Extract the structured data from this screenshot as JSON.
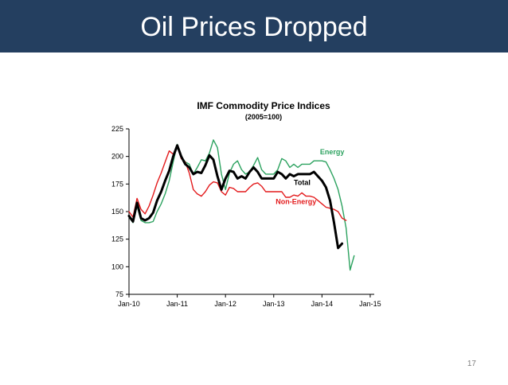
{
  "slide": {
    "title": "Oil Prices Dropped",
    "page_number": "17"
  },
  "chart_data": {
    "type": "line",
    "title": "IMF Commodity Price Indices",
    "subtitle": "(2005=100)",
    "xlabel": "",
    "ylabel": "",
    "ylim": [
      75,
      225
    ],
    "yticks": [
      75,
      100,
      125,
      150,
      175,
      200,
      225
    ],
    "xticks": [
      {
        "label": "Jan-10",
        "month": 0
      },
      {
        "label": "Jan-11",
        "month": 12
      },
      {
        "label": "Jan-12",
        "month": 24
      },
      {
        "label": "Jan-13",
        "month": 36
      },
      {
        "label": "Jan-14",
        "month": 48
      },
      {
        "label": "Jan-15",
        "month": 60
      }
    ],
    "x_months": [
      0,
      1,
      2,
      3,
      4,
      5,
      6,
      7,
      8,
      9,
      10,
      11,
      12,
      13,
      14,
      15,
      16,
      17,
      18,
      19,
      20,
      21,
      22,
      23,
      24,
      25,
      26,
      27,
      28,
      29,
      30,
      31,
      32,
      33,
      34,
      35,
      36,
      37,
      38,
      39,
      40,
      41,
      42,
      43,
      44,
      45,
      46,
      47,
      48,
      49,
      50,
      51,
      52,
      53,
      54,
      55,
      56,
      57,
      58,
      59,
      60,
      61
    ],
    "series": [
      {
        "name": "Energy",
        "color": "#2ca25f",
        "width": 1.4,
        "values": [
          145,
          140,
          155,
          142,
          140,
          140,
          141,
          150,
          157,
          166,
          178,
          195,
          211,
          200,
          195,
          193,
          184,
          190,
          197,
          196,
          203,
          215,
          208,
          184,
          170,
          185,
          193,
          196,
          188,
          184,
          186,
          192,
          199,
          188,
          184,
          184,
          184,
          188,
          198,
          196,
          190,
          193,
          190,
          193,
          193,
          193,
          196,
          196,
          196,
          195,
          188,
          180,
          170,
          155,
          135,
          97,
          110,
          null,
          null,
          null,
          null,
          null
        ]
      },
      {
        "name": "Non-Energy",
        "color": "#e31a1c",
        "width": 1.4,
        "values": [
          150,
          145,
          162,
          152,
          148,
          155,
          165,
          176,
          185,
          195,
          205,
          202,
          210,
          198,
          195,
          185,
          170,
          166,
          164,
          168,
          174,
          177,
          176,
          168,
          165,
          172,
          171,
          168,
          168,
          168,
          172,
          175,
          176,
          173,
          168,
          168,
          168,
          168,
          168,
          163,
          163,
          165,
          164,
          167,
          164,
          164,
          163,
          160,
          157,
          154,
          153,
          152,
          150,
          144,
          142,
          null,
          null,
          null,
          null,
          null,
          null,
          null
        ]
      },
      {
        "name": "Total",
        "color": "#000000",
        "width": 3,
        "values": [
          146,
          141,
          158,
          144,
          142,
          144,
          149,
          160,
          168,
          178,
          187,
          200,
          210,
          200,
          193,
          190,
          184,
          186,
          185,
          192,
          201,
          197,
          182,
          170,
          180,
          187,
          186,
          180,
          182,
          180,
          186,
          190,
          186,
          180,
          180,
          180,
          180,
          186,
          184,
          180,
          184,
          182,
          184,
          184,
          184,
          184,
          186,
          182,
          178,
          172,
          160,
          140,
          117,
          121,
          null,
          null,
          null,
          null,
          null,
          null,
          null,
          null
        ]
      }
    ],
    "series_x_start": 0,
    "series_x_step": 1,
    "x_max": 61,
    "legend": "inline labels"
  }
}
